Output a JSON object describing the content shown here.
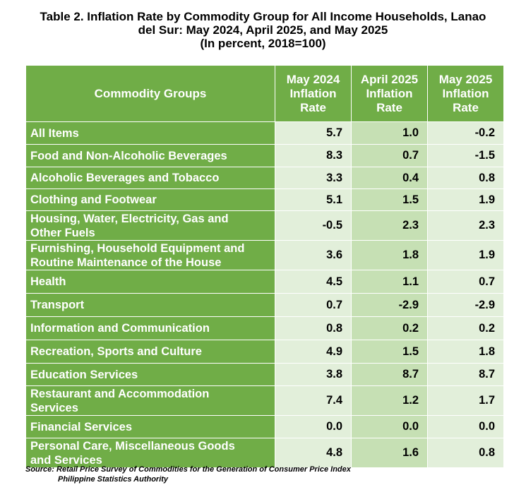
{
  "title": {
    "line1": "Table 2. Inflation Rate by Commodity Group for All Income Households, Lanao",
    "line2": "del Sur: May 2024, April 2025, and May 2025",
    "line3": "(In percent, 2018=100)"
  },
  "table": {
    "headers": {
      "groups": "Commodity Groups",
      "col1": [
        "May 2024",
        "Inflation",
        "Rate"
      ],
      "col2": [
        "April 2025",
        "Inflation",
        "Rate"
      ],
      "col3": [
        "May 2025",
        "Inflation",
        "Rate"
      ]
    },
    "rows": [
      {
        "label": [
          "All Items"
        ],
        "may2024": "5.7",
        "apr2025": "1.0",
        "may2025": "-0.2"
      },
      {
        "label": [
          "Food and Non-Alcoholic Beverages"
        ],
        "may2024": "8.3",
        "apr2025": "0.7",
        "may2025": "-1.5"
      },
      {
        "label": [
          "Alcoholic Beverages and Tobacco"
        ],
        "may2024": "3.3",
        "apr2025": "0.4",
        "may2025": "0.8"
      },
      {
        "label": [
          "Clothing and Footwear"
        ],
        "may2024": "5.1",
        "apr2025": "1.5",
        "may2025": "1.9"
      },
      {
        "label": [
          "Housing, Water, Electricity, Gas and",
          "Other Fuels"
        ],
        "may2024": "-0.5",
        "apr2025": "2.3",
        "may2025": "2.3"
      },
      {
        "label": [
          "Furnishing, Household Equipment and",
          "Routine Maintenance of the House"
        ],
        "may2024": "3.6",
        "apr2025": "1.8",
        "may2025": "1.9"
      },
      {
        "label": [
          "Health"
        ],
        "may2024": "4.5",
        "apr2025": "1.1",
        "may2025": "0.7"
      },
      {
        "label": [
          "Transport"
        ],
        "may2024": "0.7",
        "apr2025": "-2.9",
        "may2025": "-2.9"
      },
      {
        "label": [
          "Information and Communication"
        ],
        "may2024": "0.8",
        "apr2025": "0.2",
        "may2025": "0.2"
      },
      {
        "label": [
          "Recreation, Sports and Culture"
        ],
        "may2024": "4.9",
        "apr2025": "1.5",
        "may2025": "1.8"
      },
      {
        "label": [
          "Education Services"
        ],
        "may2024": "3.8",
        "apr2025": "8.7",
        "may2025": "8.7"
      },
      {
        "label": [
          "Restaurant and Accommodation",
          "Services"
        ],
        "may2024": "7.4",
        "apr2025": "1.2",
        "may2025": "1.7"
      },
      {
        "label": [
          "Financial Services"
        ],
        "may2024": "0.0",
        "apr2025": "0.0",
        "may2025": "0.0"
      },
      {
        "label": [
          "Personal Care, Miscellaneous Goods",
          "and Services"
        ],
        "may2024": "4.8",
        "apr2025": "1.6",
        "may2025": "0.8"
      }
    ]
  },
  "source": {
    "line1": "Source: Retail Price Survey of Commodities for the Generation of Consumer Price Index",
    "line2": "Philippine Statistics Authority"
  },
  "colors": {
    "header_green": "#70ad47",
    "light_green": "#e2efda",
    "mid_green": "#c6e0b4",
    "header_text": "#ffffff"
  }
}
